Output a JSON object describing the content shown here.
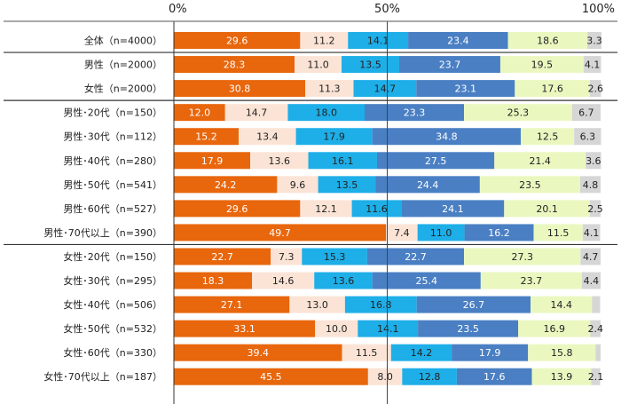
{
  "chart_data": {
    "type": "bar",
    "orientation": "horizontal",
    "stacked": true,
    "percent": true,
    "xlim": [
      0,
      100
    ],
    "x_ticks": [
      {
        "value": 0,
        "label": "0%"
      },
      {
        "value": 50,
        "label": "50%"
      },
      {
        "value": 100,
        "label": "100%"
      }
    ],
    "colors": [
      "#e8660c",
      "#fbe4d6",
      "#1eaee8",
      "#4a7fc3",
      "#eaf8c0",
      "#d6d6d6"
    ],
    "label_colors": [
      "#ffffff",
      "#222222",
      "#222222",
      "#ffffff",
      "#222222",
      "#222222"
    ],
    "group_separators_after": [
      0,
      2,
      8
    ],
    "categories": [
      "全体（n=4000）",
      "男性（n=2000）",
      "女性（n=2000）",
      "男性･20代（n=150）",
      "男性･30代（n=112）",
      "男性･40代（n=280）",
      "男性･50代（n=541）",
      "男性･60代（n=527）",
      "男性･70代以上（n=390）",
      "女性･20代（n=150）",
      "女性･30代（n=295）",
      "女性･40代（n=506）",
      "女性･50代（n=532）",
      "女性･60代（n=330）",
      "女性･70代以上（n=187）"
    ],
    "values": [
      [
        29.6,
        11.2,
        14.1,
        23.4,
        18.6,
        3.3
      ],
      [
        28.3,
        11.0,
        13.5,
        23.7,
        19.5,
        4.1
      ],
      [
        30.8,
        11.3,
        14.7,
        23.1,
        17.6,
        2.6
      ],
      [
        12.0,
        14.7,
        18.0,
        23.3,
        25.3,
        6.7
      ],
      [
        15.2,
        13.4,
        17.9,
        34.8,
        12.5,
        6.3
      ],
      [
        17.9,
        13.6,
        16.1,
        27.5,
        21.4,
        3.6
      ],
      [
        24.2,
        9.6,
        13.5,
        24.4,
        23.5,
        4.8
      ],
      [
        29.6,
        12.1,
        11.6,
        24.1,
        20.1,
        2.5
      ],
      [
        49.7,
        7.4,
        11.0,
        16.2,
        11.5,
        4.1
      ],
      [
        22.7,
        7.3,
        15.3,
        22.7,
        27.3,
        4.7
      ],
      [
        18.3,
        14.6,
        13.6,
        25.4,
        23.7,
        4.4
      ],
      [
        27.1,
        13.0,
        16.8,
        26.7,
        14.4,
        1.9
      ],
      [
        33.1,
        10.0,
        14.1,
        23.5,
        16.9,
        2.4
      ],
      [
        39.4,
        11.5,
        14.2,
        17.9,
        15.8,
        1.2
      ],
      [
        45.5,
        8.0,
        12.8,
        17.6,
        13.9,
        2.1
      ]
    ],
    "value_labels": [
      [
        "29.6",
        "11.2",
        "14.1",
        "23.4",
        "18.6",
        "3.3"
      ],
      [
        "28.3",
        "11.0",
        "13.5",
        "23.7",
        "19.5",
        "4.1"
      ],
      [
        "30.8",
        "11.3",
        "14.7",
        "23.1",
        "17.6",
        "2.6"
      ],
      [
        "12.0",
        "14.7",
        "18.0",
        "23.3",
        "25.3",
        "6.7"
      ],
      [
        "15.2",
        "13.4",
        "17.9",
        "34.8",
        "12.5",
        "6.3"
      ],
      [
        "17.9",
        "13.6",
        "16.1",
        "27.5",
        "21.4",
        "3.6"
      ],
      [
        "24.2",
        "9.6",
        "13.5",
        "24.4",
        "23.5",
        "4.8"
      ],
      [
        "29.6",
        "12.1",
        "11.6",
        "24.1",
        "20.1",
        "2.5"
      ],
      [
        "49.7",
        "7.4",
        "11.0",
        "16.2",
        "11.5",
        "4.1"
      ],
      [
        "22.7",
        "7.3",
        "15.3",
        "22.7",
        "27.3",
        "4.7"
      ],
      [
        "18.3",
        "14.6",
        "13.6",
        "25.4",
        "23.7",
        "4.4"
      ],
      [
        "27.1",
        "13.0",
        "16.8",
        "26.7",
        "14.4",
        ""
      ],
      [
        "33.1",
        "10.0",
        "14.1",
        "23.5",
        "16.9",
        "2.4"
      ],
      [
        "39.4",
        "11.5",
        "14.2",
        "17.9",
        "15.8",
        ""
      ],
      [
        "45.5",
        "8.0",
        "12.8",
        "17.6",
        "13.9",
        "2.1"
      ]
    ],
    "reference_line": 50,
    "grid": false,
    "legend": "none"
  }
}
